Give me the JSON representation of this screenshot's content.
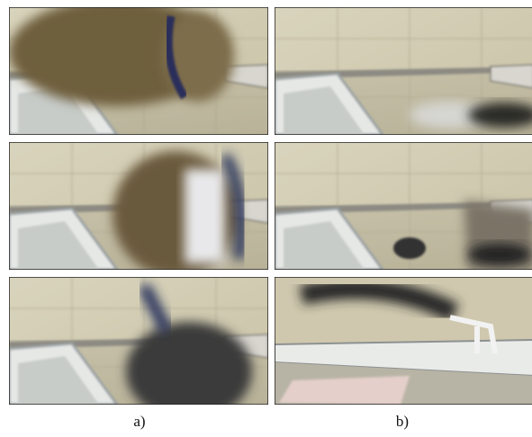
{
  "captions": [
    "a)",
    "b)"
  ]
}
